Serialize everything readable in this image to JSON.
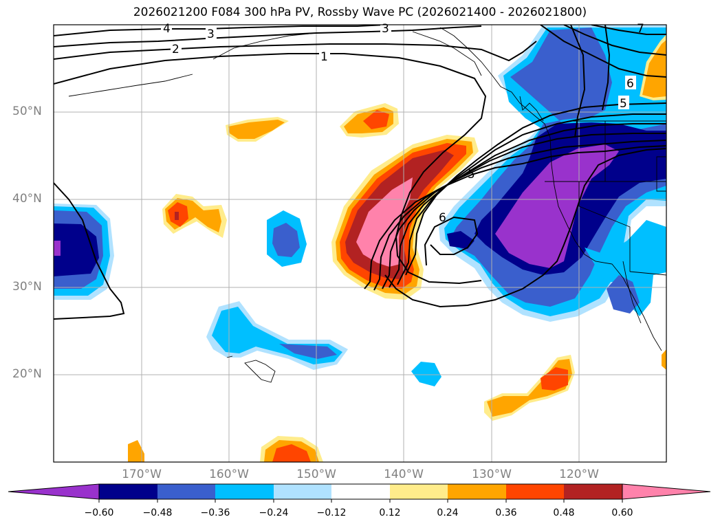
{
  "title": "2026021200 F084 300 hPa PV, Rossby Wave PC (2026021400 - 2026021800)",
  "latitude_labels": [
    "50°N",
    "40°N",
    "30°N",
    "20°N"
  ],
  "longitude_labels": [
    "170°W",
    "160°W",
    "150°W",
    "140°W",
    "130°W",
    "120°W"
  ],
  "colorbar": {
    "ticks": [
      "−0.60",
      "−0.48",
      "−0.36",
      "−0.24",
      "−0.12",
      "0.12",
      "0.24",
      "0.36",
      "0.48",
      "0.60"
    ],
    "colors": [
      "#9932cc",
      "#00008b",
      "#3a5fcd",
      "#00bfff",
      "#b0e2ff",
      "#ffffff",
      "#ffec8b",
      "#ffa500",
      "#ff4500",
      "#b22222",
      "#ff82ab"
    ]
  },
  "contour_labels": {
    "c4": "4",
    "c3a": "3",
    "c3b": "3",
    "c2": "2",
    "c1": "1",
    "c6a": "6",
    "c5a": "5",
    "c5b": "5",
    "c6b": "6",
    "c7": "7"
  },
  "colors": {
    "grid": "#b0b0b0",
    "frame": "#000000",
    "contour": "#000000",
    "axis_label": "#808080"
  }
}
